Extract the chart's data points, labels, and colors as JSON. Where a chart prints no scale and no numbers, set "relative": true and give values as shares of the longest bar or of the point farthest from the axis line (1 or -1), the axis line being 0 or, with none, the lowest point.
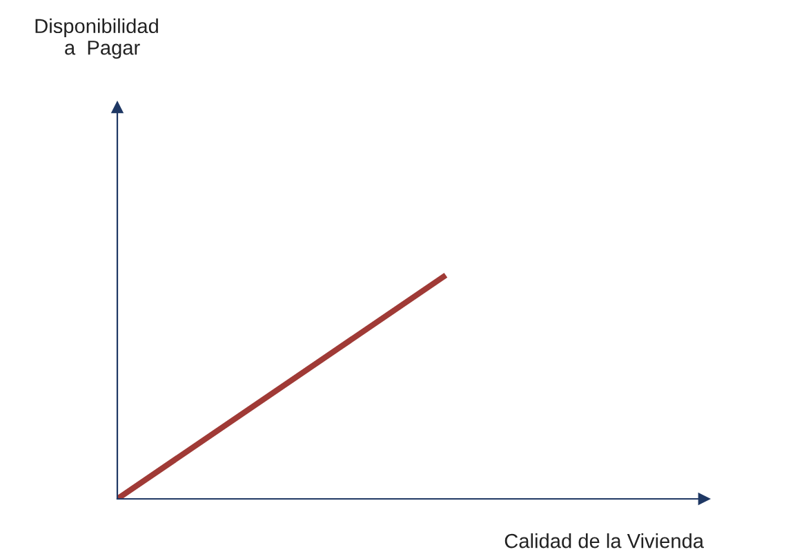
{
  "chart_data": {
    "type": "line",
    "relative": true,
    "xlabel": "Calidad de la Vivienda",
    "annotations": [
      "Disponibilidad\n  a  Pagar"
    ],
    "categories": [
      null,
      null
    ],
    "series": [
      {
        "color": "#a03a36",
        "values": [
          0,
          1
        ]
      }
    ],
    "legend": false
  }
}
